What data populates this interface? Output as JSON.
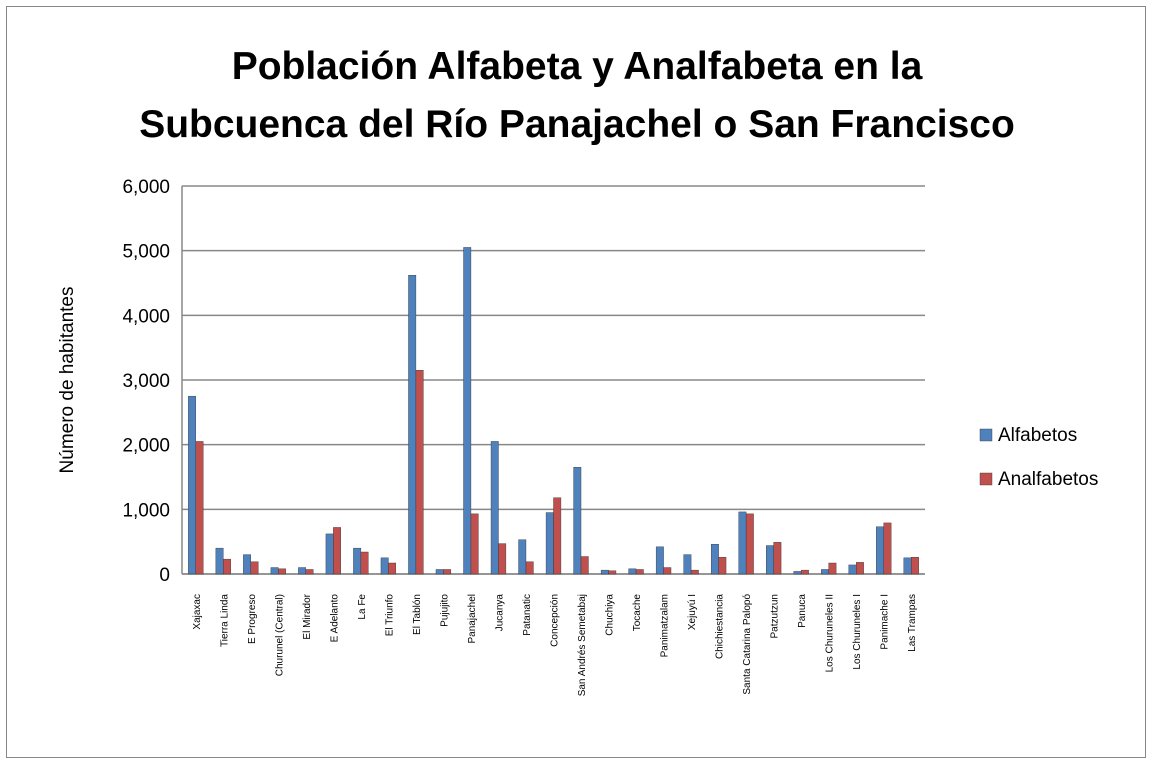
{
  "chart_data": {
    "type": "bar",
    "title": "Población Alfabeta y Analfabeta en la Subcuenca del Río Panajachel o San Francisco",
    "y_label": "Número de habitantes",
    "categories": [
      "Xajaxac",
      "Tierra Linda",
      "E Progreso",
      "Churunel (Central)",
      "El Mirador",
      "E Adelanto",
      "La Fe",
      "El Triunfo",
      "El Tablón",
      "Pujujito",
      "Panajachel",
      "Jucanya",
      "Patanatic",
      "Concepción",
      "San Andrés Semetabaj",
      "Chuchiya",
      "Tocache",
      "Panimatzalam",
      "Xejuyú I",
      "Chichiestancia",
      "Santa Catarina Palopó",
      "Patzutzun",
      "Panuca",
      "Los Churuneles II",
      "Los Churuneles I",
      "Panimache I",
      "Las Trampas"
    ],
    "series": [
      {
        "name": "Alfabetos",
        "color": "#4f81bd",
        "values": [
          2750,
          400,
          300,
          100,
          100,
          620,
          400,
          250,
          4620,
          70,
          5050,
          2050,
          530,
          950,
          1650,
          60,
          80,
          420,
          300,
          460,
          960,
          440,
          40,
          70,
          140,
          730,
          250
        ]
      },
      {
        "name": "Analfabetos",
        "color": "#c0504d",
        "values": [
          2050,
          230,
          190,
          80,
          70,
          720,
          340,
          170,
          3150,
          70,
          930,
          470,
          190,
          1180,
          270,
          50,
          70,
          100,
          60,
          260,
          930,
          490,
          60,
          170,
          180,
          790,
          260
        ]
      }
    ],
    "ylim": [
      0,
      6000
    ],
    "yticks": [
      0,
      {
        "value": 1000,
        "label": "1,000"
      },
      {
        "value": 2000,
        "label": "2,000"
      },
      {
        "value": 3000,
        "label": "3,000"
      },
      {
        "value": 4000,
        "label": "4,000"
      },
      {
        "value": 5000,
        "label": "5,000"
      },
      {
        "value": 6000,
        "label": "6,000"
      }
    ],
    "grid": true,
    "legend": "right"
  }
}
